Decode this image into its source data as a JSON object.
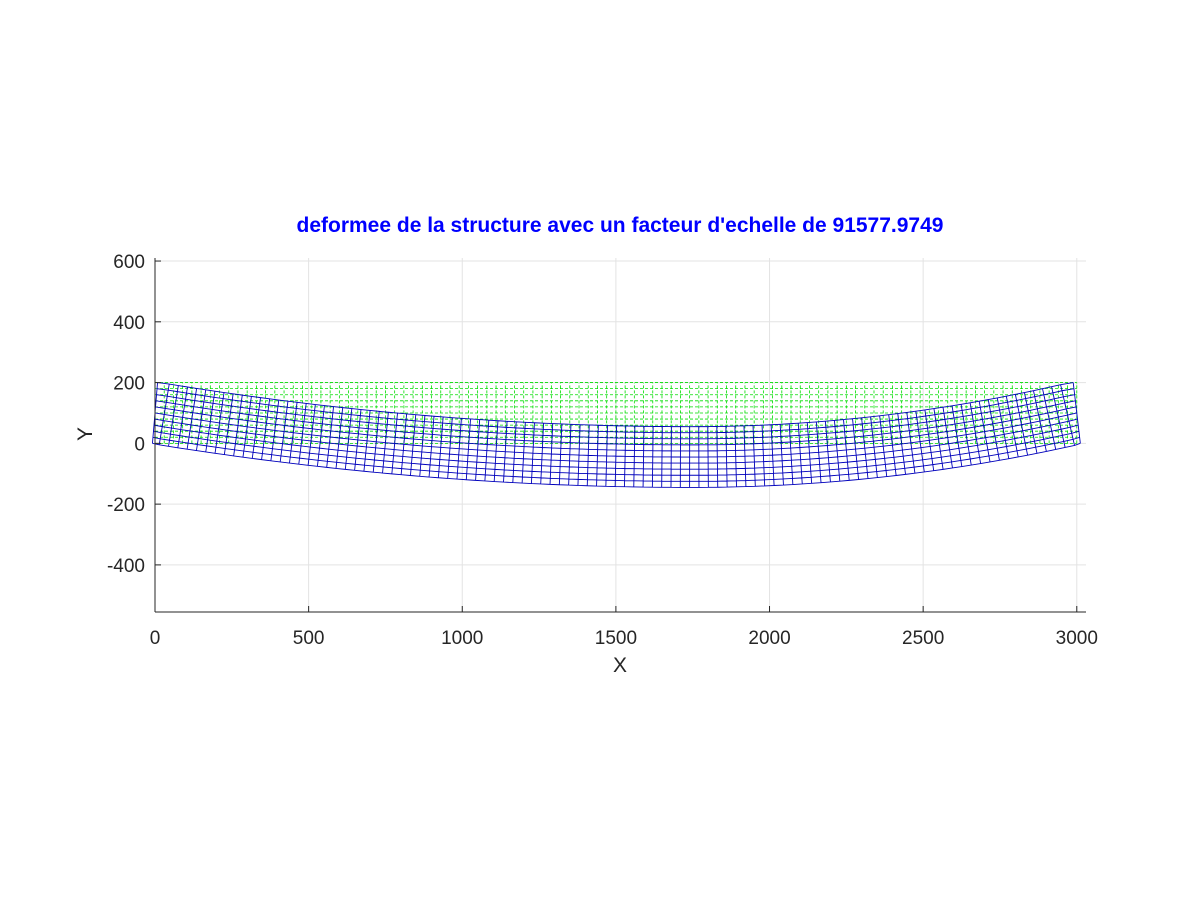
{
  "chart_data": {
    "type": "line",
    "title": "deformee de la structure avec un facteur d'echelle de 91577.9749",
    "xlabel": "X",
    "ylabel": "Y",
    "xlim": [
      0,
      3030
    ],
    "ylim": [
      -555,
      610
    ],
    "xticks": [
      "0",
      "500",
      "1000",
      "1500",
      "2000",
      "2500",
      "3000"
    ],
    "yticks": [
      "600",
      "400",
      "200",
      "0",
      "-200",
      "-400"
    ],
    "xtick_values": [
      0,
      500,
      1000,
      1500,
      2000,
      2500,
      3000
    ],
    "ytick_values": [
      600,
      400,
      200,
      0,
      -200,
      -400
    ],
    "grid": true,
    "mesh": {
      "length": 3000,
      "height": 200,
      "elements_x": 100,
      "elements_y": 10
    },
    "series": [
      {
        "role": "undeformed mesh",
        "style": "dashed",
        "color": "#00dd00",
        "left_corner": [
          0,
          0
        ],
        "right_corner": [
          3000,
          200
        ]
      },
      {
        "role": "deformed mesh",
        "style": "solid",
        "color": "#0000bb",
        "max_deflection_at_x": 1750,
        "max_deflection_bottom": -145,
        "top_edge_min_y": 55,
        "left_top_corner": [
          40,
          200
        ],
        "right_top_corner": [
          2990,
          200
        ],
        "left_bottom_corner": [
          0,
          0
        ],
        "right_bottom_corner": [
          3030,
          10
        ]
      }
    ],
    "colors": {
      "title": "#0000ff",
      "axis": "#262626",
      "grid": "#e3e3e3"
    }
  }
}
